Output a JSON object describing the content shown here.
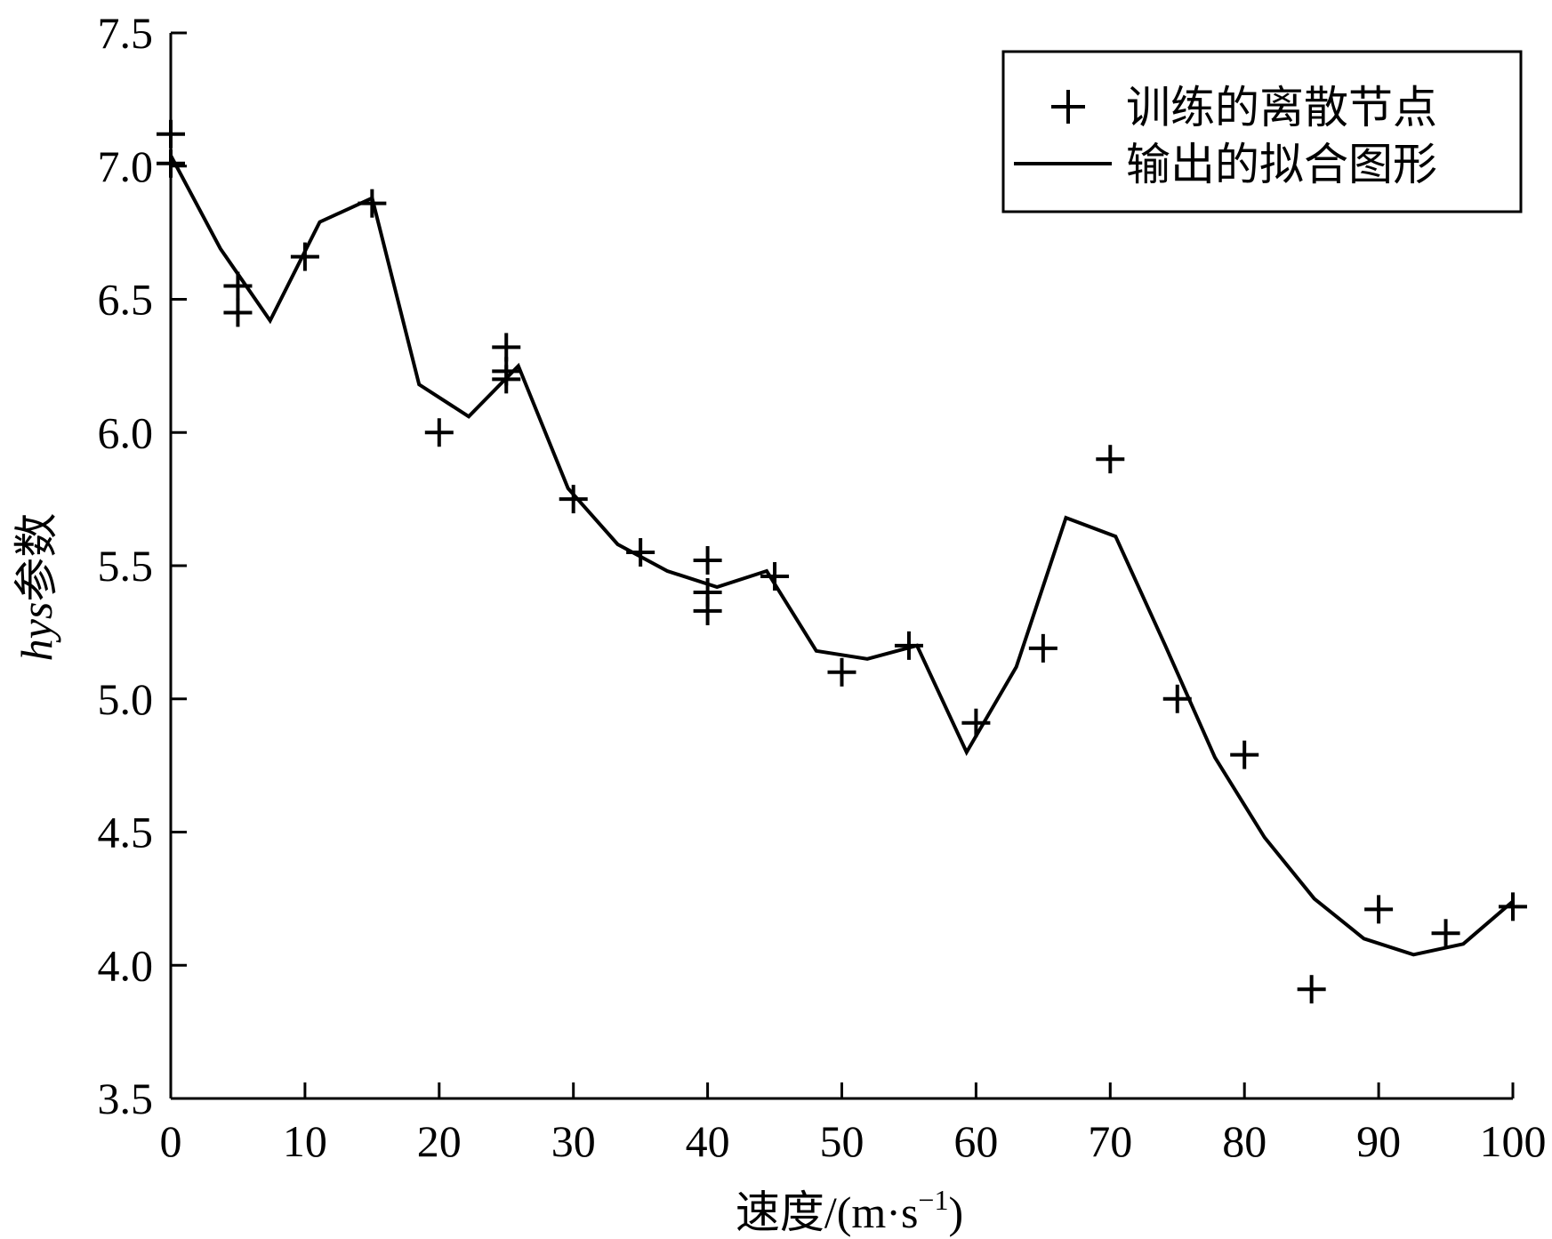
{
  "chart_data": {
    "type": "line",
    "xlabel": "速度/(m·s",
    "xlabel_sup": "−1",
    "xlabel_close": ")",
    "ylabel_italic": "hys",
    "ylabel": "参数",
    "xlim": [
      0,
      100
    ],
    "ylim": [
      3.5,
      7.5
    ],
    "x_ticks": [
      0,
      10,
      20,
      30,
      40,
      50,
      60,
      70,
      80,
      90,
      100
    ],
    "x_tick_labels": [
      "0",
      "10",
      "20",
      "30",
      "40",
      "50",
      "60",
      "70",
      "80",
      "90",
      "100"
    ],
    "y_ticks": [
      3.5,
      4.0,
      4.5,
      5.0,
      5.5,
      6.0,
      6.5,
      7.0,
      7.5
    ],
    "y_tick_labels": [
      "3.5",
      "4.0",
      "4.5",
      "5.0",
      "5.5",
      "6.0",
      "6.5",
      "7.0",
      "7.5"
    ],
    "grid": false,
    "legend_position": "top-right",
    "series": [
      {
        "name": "训练的离散节点",
        "marker": "plus",
        "color": "#000000",
        "points": [
          [
            0,
            7.12
          ],
          [
            0,
            7.01
          ],
          [
            5,
            6.55
          ],
          [
            5,
            6.45
          ],
          [
            10,
            6.66
          ],
          [
            15,
            6.86
          ],
          [
            20,
            6.0
          ],
          [
            25,
            6.32
          ],
          [
            25,
            6.23
          ],
          [
            25,
            6.2
          ],
          [
            30,
            5.75
          ],
          [
            35,
            5.55
          ],
          [
            40,
            5.52
          ],
          [
            40,
            5.4
          ],
          [
            40,
            5.33
          ],
          [
            45,
            5.46
          ],
          [
            50,
            5.1
          ],
          [
            55,
            5.2
          ],
          [
            60,
            4.91
          ],
          [
            65,
            5.19
          ],
          [
            70,
            5.9
          ],
          [
            75,
            5.0
          ],
          [
            80,
            4.79
          ],
          [
            85,
            3.91
          ],
          [
            90,
            4.21
          ],
          [
            95,
            4.12
          ],
          [
            100,
            4.22
          ]
        ]
      },
      {
        "name": "输出的拟合图形",
        "marker": "line",
        "color": "#000000",
        "points": [
          [
            0,
            7.04
          ],
          [
            3.7,
            6.69
          ],
          [
            7.4,
            6.42
          ],
          [
            11.1,
            6.79
          ],
          [
            15,
            6.88
          ],
          [
            18.5,
            6.18
          ],
          [
            22.2,
            6.06
          ],
          [
            25.9,
            6.25
          ],
          [
            29.6,
            5.79
          ],
          [
            33.3,
            5.58
          ],
          [
            37,
            5.48
          ],
          [
            40.7,
            5.42
          ],
          [
            44.4,
            5.48
          ],
          [
            48.1,
            5.18
          ],
          [
            51.9,
            5.15
          ],
          [
            55.6,
            5.2
          ],
          [
            59.3,
            4.8
          ],
          [
            63,
            5.12
          ],
          [
            66.7,
            5.68
          ],
          [
            70.4,
            5.61
          ],
          [
            74.1,
            5.2
          ],
          [
            77.8,
            4.78
          ],
          [
            81.5,
            4.48
          ],
          [
            85.2,
            4.25
          ],
          [
            88.9,
            4.1
          ],
          [
            92.6,
            4.04
          ],
          [
            96.3,
            4.08
          ],
          [
            100,
            4.24
          ]
        ]
      }
    ]
  }
}
